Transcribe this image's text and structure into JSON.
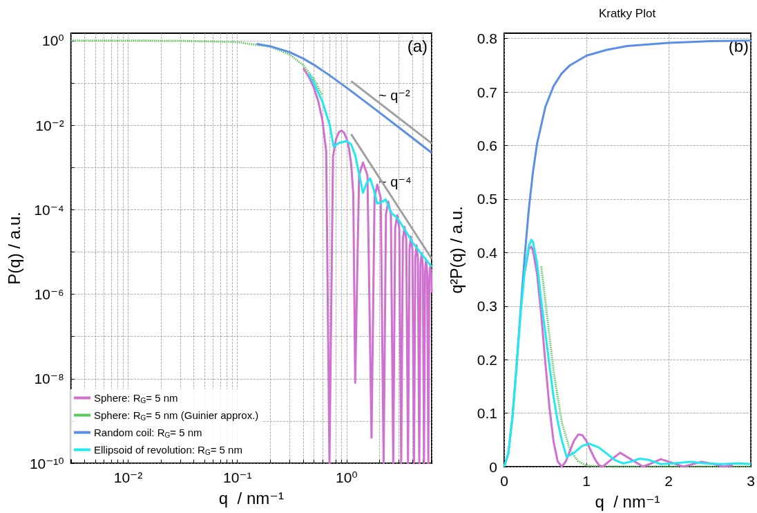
{
  "chart_data": [
    {
      "type": "line",
      "xlabel": "q  / nm⁻¹",
      "ylabel": "P(q) / a.u.",
      "log": "xy",
      "grid": true,
      "legend": "bottom left",
      "xlim": [
        0.003,
        6
      ],
      "ylim": [
        1e-10,
        1.5
      ],
      "xticks": [
        {
          "value": 0.003,
          "label": null
        },
        {
          "value": 0.004,
          "label": null
        },
        {
          "value": 0.005,
          "label": null
        },
        {
          "value": 0.006,
          "label": null
        },
        {
          "value": 0.007,
          "label": null
        },
        {
          "value": 0.008,
          "label": null
        },
        {
          "value": 0.009,
          "label": null
        },
        {
          "value": 0.01,
          "label": "10⁻²"
        },
        {
          "value": 0.02,
          "label": null
        },
        {
          "value": 0.03,
          "label": null
        },
        {
          "value": 0.04,
          "label": null
        },
        {
          "value": 0.05,
          "label": null
        },
        {
          "value": 0.06,
          "label": null
        },
        {
          "value": 0.07,
          "label": null
        },
        {
          "value": 0.08,
          "label": null
        },
        {
          "value": 0.09,
          "label": null
        },
        {
          "value": 0.1,
          "label": "10⁻¹"
        },
        {
          "value": 0.2,
          "label": null
        },
        {
          "value": 0.3,
          "label": null
        },
        {
          "value": 0.4,
          "label": null
        },
        {
          "value": 0.5,
          "label": null
        },
        {
          "value": 0.6,
          "label": null
        },
        {
          "value": 0.7,
          "label": null
        },
        {
          "value": 0.8,
          "label": null
        },
        {
          "value": 0.9,
          "label": null
        },
        {
          "value": 1,
          "label": "10⁰"
        },
        {
          "value": 2,
          "label": null
        },
        {
          "value": 3,
          "label": null
        },
        {
          "value": 4,
          "label": null
        },
        {
          "value": 5,
          "label": null
        },
        {
          "value": 6,
          "label": null
        }
      ],
      "yticks": [
        {
          "value": 1e-10,
          "label": "10⁻¹⁰"
        },
        {
          "value": 1e-09,
          "label": null
        },
        {
          "value": 1e-08,
          "label": "10⁻⁸"
        },
        {
          "value": 1e-07,
          "label": null
        },
        {
          "value": 1e-06,
          "label": "10⁻⁶"
        },
        {
          "value": 1e-05,
          "label": null
        },
        {
          "value": 0.0001,
          "label": "10⁻⁴"
        },
        {
          "value": 0.001,
          "label": null
        },
        {
          "value": 0.01,
          "label": "10⁻²"
        },
        {
          "value": 0.1,
          "label": null
        },
        {
          "value": 1,
          "label": "10⁰"
        }
      ],
      "annotations": [
        "(a)",
        "~ q⁻²",
        "~ q⁻⁴"
      ],
      "series": [
        {
          "name": "Sphere: R$_{G}$= 5 nm",
          "color": "#d070d0",
          "x": [
            0.4,
            0.45,
            0.5,
            0.55,
            0.6,
            0.65,
            0.696,
            0.75,
            0.8,
            0.85,
            0.9,
            0.95,
            1.0,
            1.05,
            1.1,
            1.15,
            1.197,
            1.3,
            1.41,
            1.55,
            1.689,
            1.8,
            1.905,
            2.05,
            2.179,
            2.29,
            2.4,
            2.54,
            2.668,
            2.78,
            2.9,
            3.03,
            3.156,
            3.27,
            3.385,
            3.51,
            3.644,
            3.76,
            3.87,
            4.0,
            4.131,
            4.25,
            4.36,
            4.49,
            4.618,
            4.74,
            4.85,
            4.98,
            5.105,
            5.22,
            5.33,
            5.46,
            5.592,
            5.7,
            5.82,
            5.95,
            6
          ],
          "values": [
            0.225,
            0.14,
            0.078,
            0.0368,
            0.0131,
            0.00237,
            1e-10,
            0.00181,
            0.00473,
            0.00684,
            0.00743,
            0.00654,
            0.00476,
            0.00282,
            0.0012,
            0.000232,
            8e-09,
            0.00065,
            0.00131,
            0.00065,
            4e-10,
            0.000195,
            0.00039,
            0.00019,
            1e-10,
            7.8e-05,
            0.000156,
            7.8e-05,
            1e-10,
            3.7e-05,
            7.4e-05,
            3.7e-05,
            1e-10,
            2e-05,
            3.95e-05,
            2e-05,
            1e-10,
            1.15e-05,
            2.3e-05,
            1.15e-05,
            1e-10,
            7e-06,
            1.44e-05,
            7e-06,
            1e-10,
            4.7e-06,
            9.4e-06,
            4.7e-06,
            1e-10,
            3.2e-06,
            6.4e-06,
            3.2e-06,
            1e-10,
            2.2e-06,
            4.5e-06,
            3e-06,
            1.1e-06
          ]
        },
        {
          "name": "Sphere: R$_{G}$= 5 nm (Guinier approx.)",
          "color": "#5cc85c",
          "line_style": "dotted",
          "x": [
            0.003,
            0.01,
            0.03,
            0.1,
            0.2,
            0.3,
            0.4,
            0.5,
            0.6
          ],
          "values": [
            1,
            0.999,
            0.9925,
            0.92,
            0.717,
            0.472,
            0.264,
            0.1245,
            0.0498
          ]
        },
        {
          "name": "Random coil: R$_{G}$= 5 nm",
          "color": "#5b8ee6",
          "x": [
            0.15,
            0.2,
            0.3,
            0.4,
            0.5,
            0.7,
            1,
            1.5,
            2,
            3,
            4,
            6
          ],
          "values": [
            0.836,
            0.736,
            0.536,
            0.377,
            0.269,
            0.15,
            0.0768,
            0.0349,
            0.0198,
            0.00885,
            0.00499,
            0.00222
          ]
        },
        {
          "name": "Ellipsoid of revolution: R$_{G}$= 5 nm",
          "color": "#22e8f0",
          "x": [
            0.45,
            0.5,
            0.6,
            0.7,
            0.76,
            0.85,
            1.0,
            1.1,
            1.2,
            1.3,
            1.41,
            1.52,
            1.64,
            1.77,
            1.9,
            2.08,
            2.27,
            2.45,
            2.6,
            2.8,
            3,
            3.5,
            4,
            5,
            6
          ],
          "values": [
            0.165,
            0.1,
            0.036,
            0.0102,
            0.0031,
            0.0038,
            0.0042,
            0.0035,
            0.0019,
            0.0007,
            0.00025,
            0.00042,
            0.00055,
            0.0003,
            0.00014,
            0.00015,
            0.000175,
            0.00011,
            8e-05,
            7e-05,
            5.6e-05,
            3e-05,
            1.7e-05,
            8e-06,
            4.5e-06
          ]
        },
        {
          "color": "#a0a0a0",
          "x": [
            1.1,
            6
          ],
          "values": [
            0.11,
            0.0037
          ]
        },
        {
          "color": "#a0a0a0",
          "x": [
            1.1,
            6
          ],
          "values": [
            0.0061,
            6.9e-06
          ]
        }
      ]
    },
    {
      "type": "line",
      "title": "Kratky Plot",
      "xlabel": "q  / nm⁻¹",
      "ylabel": "q²P(q) / a.u.",
      "grid": true,
      "xlim": [
        0,
        3
      ],
      "ylim": [
        0,
        0.81
      ],
      "xticks": [
        0,
        1,
        2,
        3
      ],
      "yticks": [
        0,
        0.1,
        0.2,
        0.3,
        0.4,
        0.5,
        0.6,
        0.7,
        0.8
      ],
      "annotations": [
        "(b)"
      ],
      "series": [
        {
          "color": "#5b8ee6",
          "x": [
            0,
            0.05,
            0.1,
            0.15,
            0.2,
            0.25,
            0.3,
            0.35,
            0.4,
            0.5,
            0.6,
            0.7,
            0.8,
            1.0,
            1.25,
            1.5,
            2,
            2.5,
            3
          ],
          "values": [
            0,
            0.025,
            0.092,
            0.188,
            0.294,
            0.395,
            0.482,
            0.551,
            0.604,
            0.672,
            0.711,
            0.735,
            0.75,
            0.768,
            0.779,
            0.786,
            0.792,
            0.795,
            0.796
          ]
        },
        {
          "color": "#5cc85c",
          "line_style": "dotted",
          "x": [
            0.45,
            0.5,
            0.6,
            0.7,
            0.8,
            0.9,
            1.0,
            1.2,
            1.5,
            3
          ],
          "values": [
            0.374,
            0.311,
            0.179,
            0.083,
            0.031,
            0.01,
            0.002,
            0,
            0,
            0
          ]
        },
        {
          "color": "#d070d0",
          "x": [
            0.25,
            0.3,
            0.33,
            0.35,
            0.4,
            0.45,
            0.5,
            0.55,
            0.6,
            0.65,
            0.7,
            0.75,
            0.8,
            0.85,
            0.9,
            0.95,
            1.0,
            1.05,
            1.1,
            1.15,
            1.197,
            1.3,
            1.41,
            1.55,
            1.689,
            1.8,
            1.905,
            2.05,
            2.179,
            2.3,
            2.4,
            2.55,
            2.668,
            2.78
          ],
          "values": [
            0.364,
            0.407,
            0.411,
            0.404,
            0.36,
            0.284,
            0.195,
            0.111,
            0.047,
            0.01,
            0,
            0.01,
            0.03,
            0.049,
            0.06,
            0.059,
            0.048,
            0.031,
            0.015,
            0.003,
            0,
            0.013,
            0.026,
            0.013,
            0,
            0.007,
            0.014,
            0.007,
            0,
            0.005,
            0.009,
            0.005,
            0,
            0.003
          ]
        },
        {
          "color": "#22e8f0",
          "x": [
            0,
            0.05,
            0.1,
            0.15,
            0.2,
            0.25,
            0.3,
            0.33,
            0.35,
            0.4,
            0.45,
            0.5,
            0.55,
            0.6,
            0.65,
            0.7,
            0.76,
            0.85,
            0.95,
            1.03,
            1.15,
            1.25,
            1.35,
            1.45,
            1.55,
            1.65,
            1.75,
            1.9,
            2.05,
            2.27,
            2.45,
            2.65,
            2.85,
            3.0
          ],
          "values": [
            0,
            0.025,
            0.092,
            0.186,
            0.287,
            0.366,
            0.412,
            0.424,
            0.42,
            0.38,
            0.31,
            0.25,
            0.19,
            0.13,
            0.085,
            0.05,
            0.018,
            0.026,
            0.039,
            0.043,
            0.036,
            0.024,
            0.012,
            0.006,
            0.01,
            0.015,
            0.013,
            0.005,
            0.006,
            0.009,
            0.006,
            0.005,
            0.006,
            0.005
          ]
        }
      ]
    }
  ]
}
